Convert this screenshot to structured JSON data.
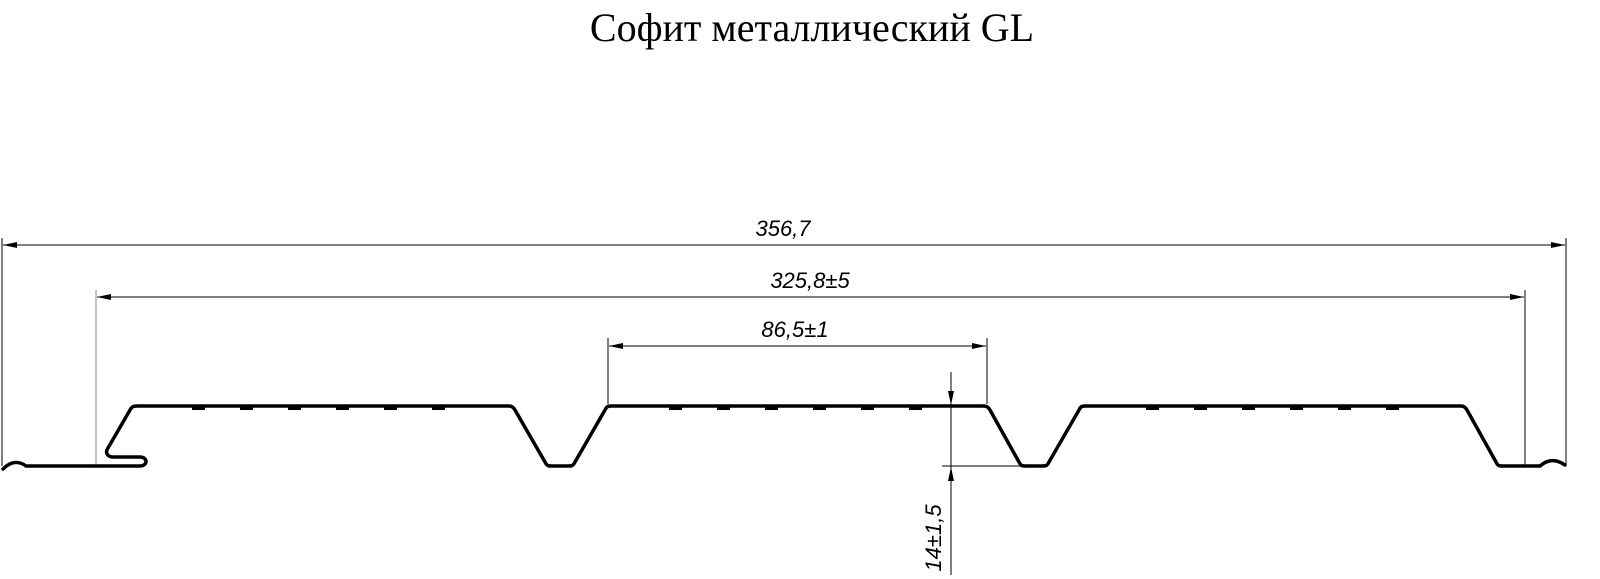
{
  "title": "Софит металлический GL",
  "dimensions": {
    "overall_width": "356,7",
    "working_width": "325,8±5",
    "rib_pitch": "86,5±1",
    "profile_height": "14±1,5"
  }
}
